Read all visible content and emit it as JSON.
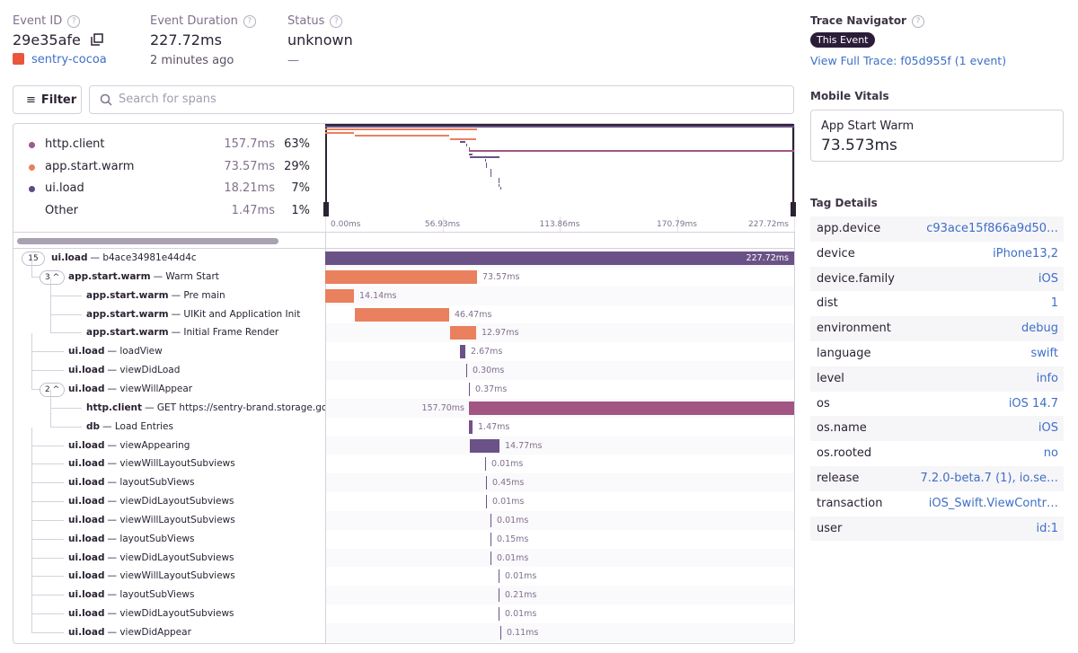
{
  "header": {
    "event_id": {
      "label": "Event ID",
      "value": "29e35afe",
      "project": "sentry-cocoa"
    },
    "duration": {
      "label": "Event Duration",
      "value": "227.72ms",
      "time": "2 minutes ago"
    },
    "status": {
      "label": "Status",
      "value": "unknown",
      "sub": "—"
    }
  },
  "filter": {
    "button": "Filter",
    "placeholder": "Search for spans"
  },
  "ops": [
    {
      "name": "http.client",
      "duration": "157.7ms",
      "percent": "63%",
      "color": "#9a5a8b"
    },
    {
      "name": "app.start.warm",
      "duration": "73.57ms",
      "percent": "29%",
      "color": "#e9805e"
    },
    {
      "name": "ui.load",
      "duration": "18.21ms",
      "percent": "7%",
      "color": "#5f4a82"
    },
    {
      "name": "Other",
      "duration": "1.47ms",
      "percent": "1%"
    }
  ],
  "minimap_ticks": [
    "0.00ms",
    "56.93ms",
    "113.86ms",
    "170.79ms",
    "227.72ms"
  ],
  "spans": [
    {
      "op": "ui.load",
      "description": "— b4ace34981e44d4c",
      "children": "15",
      "duration": "227.72ms",
      "color": "#6a5286"
    },
    {
      "op": "app.start.warm",
      "description": "— Warm Start",
      "children": "3",
      "duration": "73.57ms",
      "color": "#e9805e"
    },
    {
      "op": "app.start.warm",
      "description": "— Pre main",
      "duration": "14.14ms",
      "color": "#e9805e"
    },
    {
      "op": "app.start.warm",
      "description": "— UIKit and Application Init",
      "duration": "46.47ms",
      "color": "#e9805e"
    },
    {
      "op": "app.start.warm",
      "description": "— Initial Frame Render",
      "duration": "12.97ms",
      "color": "#e9805e"
    },
    {
      "op": "ui.load",
      "description": "— loadView",
      "duration": "2.67ms",
      "color": "#6a5286"
    },
    {
      "op": "ui.load",
      "description": "— viewDidLoad",
      "duration": "0.30ms",
      "color": "#6a5286"
    },
    {
      "op": "ui.load",
      "description": "— viewWillAppear",
      "children": "2",
      "duration": "0.37ms",
      "color": "#6a5286"
    },
    {
      "op": "http.client",
      "description": "— GET https://sentry-brand.storage.googlea",
      "duration": "157.70ms",
      "color": "#a05582"
    },
    {
      "op": "db",
      "description": "— Load Entries",
      "duration": "1.47ms",
      "color": "#7b4d8f"
    },
    {
      "op": "ui.load",
      "description": "— viewAppearing",
      "duration": "14.77ms",
      "color": "#6a5286"
    },
    {
      "op": "ui.load",
      "description": "— viewWillLayoutSubviews",
      "duration": "0.01ms",
      "color": "#6a5286"
    },
    {
      "op": "ui.load",
      "description": "— layoutSubViews",
      "duration": "0.45ms",
      "color": "#6a5286"
    },
    {
      "op": "ui.load",
      "description": "— viewDidLayoutSubviews",
      "duration": "0.01ms",
      "color": "#6a5286"
    },
    {
      "op": "ui.load",
      "description": "— viewWillLayoutSubviews",
      "duration": "0.01ms",
      "color": "#6a5286"
    },
    {
      "op": "ui.load",
      "description": "— layoutSubViews",
      "duration": "0.15ms",
      "color": "#6a5286"
    },
    {
      "op": "ui.load",
      "description": "— viewDidLayoutSubviews",
      "duration": "0.01ms",
      "color": "#6a5286"
    },
    {
      "op": "ui.load",
      "description": "— viewWillLayoutSubviews",
      "duration": "0.01ms",
      "color": "#6a5286"
    },
    {
      "op": "ui.load",
      "description": "— layoutSubViews",
      "duration": "0.21ms",
      "color": "#6a5286"
    },
    {
      "op": "ui.load",
      "description": "— viewDidLayoutSubviews",
      "duration": "0.01ms",
      "color": "#6a5286"
    },
    {
      "op": "ui.load",
      "description": "— viewDidAppear",
      "duration": "0.11ms",
      "color": "#6a5286"
    }
  ],
  "sidebar": {
    "trace_navigator": {
      "title": "Trace Navigator",
      "badge": "This Event",
      "link": "View Full Trace: f05d955f (1 event)"
    },
    "mobile_vitals": {
      "title": "Mobile Vitals",
      "name": "App Start Warm",
      "value": "73.573ms"
    },
    "tag_details": {
      "title": "Tag Details",
      "rows": [
        [
          "app.device",
          "c93ace15f866a9d50…"
        ],
        [
          "device",
          "iPhone13,2"
        ],
        [
          "device.family",
          "iOS"
        ],
        [
          "dist",
          "1"
        ],
        [
          "environment",
          "debug"
        ],
        [
          "language",
          "swift"
        ],
        [
          "level",
          "info"
        ],
        [
          "os",
          "iOS 14.7"
        ],
        [
          "os.name",
          "iOS"
        ],
        [
          "os.rooted",
          "no"
        ],
        [
          "release",
          "7.2.0-beta.7 (1), io.se…"
        ],
        [
          "transaction",
          "iOS_Swift.ViewContr…"
        ],
        [
          "user",
          "id:1"
        ]
      ]
    }
  }
}
